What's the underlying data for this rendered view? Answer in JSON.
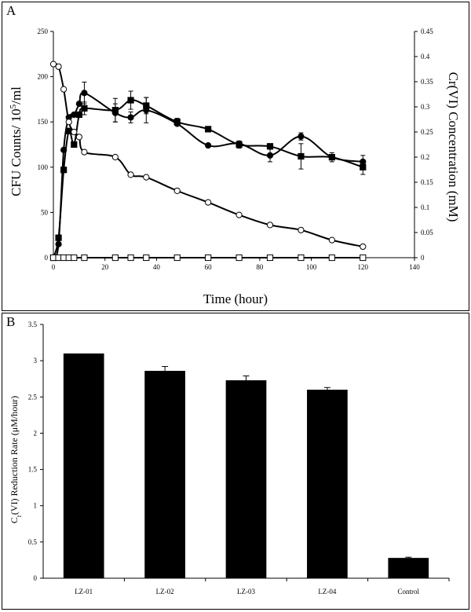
{
  "panel_a": {
    "letter": "A",
    "chart_data": {
      "type": "line",
      "xlabel": "Time (hour)",
      "ylabel_left": "CFU Counts/ 10^5/ml",
      "ylabel_left_parts": [
        "CFU Counts/ 10",
        "5",
        "/ml"
      ],
      "ylabel_right": "Cr(VI) Concentration (mM)",
      "xlim": [
        0,
        140
      ],
      "ylim_left": [
        0,
        250
      ],
      "ylim_right": [
        0,
        0.45
      ],
      "x_ticks": [
        "0",
        "20",
        "40",
        "60",
        "80",
        "100",
        "120",
        "140"
      ],
      "y_left_ticks": [
        "0",
        "50",
        "100",
        "150",
        "200",
        "250"
      ],
      "y_right_ticks": [
        "0",
        "0.05",
        "0.1",
        "0.15",
        "0.2",
        "0.25",
        "0.3",
        "0.35",
        "0.4",
        "0.45"
      ],
      "grid": false,
      "series": [
        {
          "axis": "left",
          "marker": "filled-circle",
          "color": "#000000",
          "x": [
            0,
            2,
            4,
            6,
            8,
            10,
            12,
            24,
            30,
            36,
            48,
            60,
            72,
            84,
            96,
            108,
            120
          ],
          "y": [
            0,
            15,
            119,
            155,
            158,
            170,
            182,
            160,
            155,
            163,
            148,
            124,
            126,
            113,
            134,
            111,
            106
          ],
          "err": [
            0,
            0,
            0,
            0,
            0,
            0,
            12,
            10,
            6,
            14,
            0,
            0,
            0,
            7,
            4,
            0,
            7
          ]
        },
        {
          "axis": "left",
          "marker": "filled-square",
          "color": "#000000",
          "x": [
            0,
            2,
            4,
            6,
            8,
            10,
            12,
            24,
            30,
            36,
            48,
            60,
            72,
            84,
            96,
            108,
            120
          ],
          "y": [
            0,
            22,
            97,
            140,
            125,
            158,
            165,
            163,
            174,
            168,
            150,
            142,
            125,
            123,
            112,
            111,
            100
          ],
          "err": [
            0,
            0,
            0,
            0,
            0,
            0,
            7,
            13,
            10,
            9,
            4,
            3,
            4,
            3,
            14,
            5,
            8
          ]
        },
        {
          "axis": "right",
          "marker": "open-circle",
          "color": "#000000",
          "x": [
            0,
            2,
            4,
            6,
            8,
            10,
            12,
            24,
            30,
            36,
            48,
            60,
            72,
            84,
            96,
            108,
            120
          ],
          "y": [
            0.385,
            0.38,
            0.335,
            0.27,
            0.25,
            0.24,
            0.21,
            0.2,
            0.165,
            0.16,
            0.133,
            0.11,
            0.085,
            0.065,
            0.055,
            0.035,
            0.022
          ]
        },
        {
          "axis": "left",
          "marker": "open-square",
          "color": "#000000",
          "x": [
            0,
            2,
            4,
            6,
            8,
            12,
            24,
            30,
            36,
            48,
            60,
            72,
            84,
            96,
            108,
            120
          ],
          "y": [
            0,
            0,
            0,
            0,
            0,
            0,
            0,
            0,
            0,
            0,
            0,
            0,
            0,
            0,
            0,
            0
          ]
        }
      ]
    }
  },
  "panel_b": {
    "letter": "B",
    "chart_data": {
      "type": "bar",
      "ylabel": "Cr(VI) Reduction Rate (μM/hour)",
      "ylabel_parts": [
        "C",
        "r",
        "(VI) Reduction Rate (",
        "μ",
        "M/hour)"
      ],
      "xlabel": "",
      "categories": [
        "LZ-01",
        "LZ-02",
        "LZ-03",
        "LZ-04",
        "Control"
      ],
      "values": [
        3.1,
        2.86,
        2.73,
        2.6,
        0.28
      ],
      "errors": [
        0,
        0.06,
        0.06,
        0.03,
        0.01
      ],
      "ylim": [
        0,
        3.5
      ],
      "y_ticks": [
        "0",
        "0.5",
        "1",
        "1.5",
        "2",
        "2.5",
        "3",
        "3.5"
      ],
      "bar_color": "#000000",
      "grid": false
    }
  }
}
